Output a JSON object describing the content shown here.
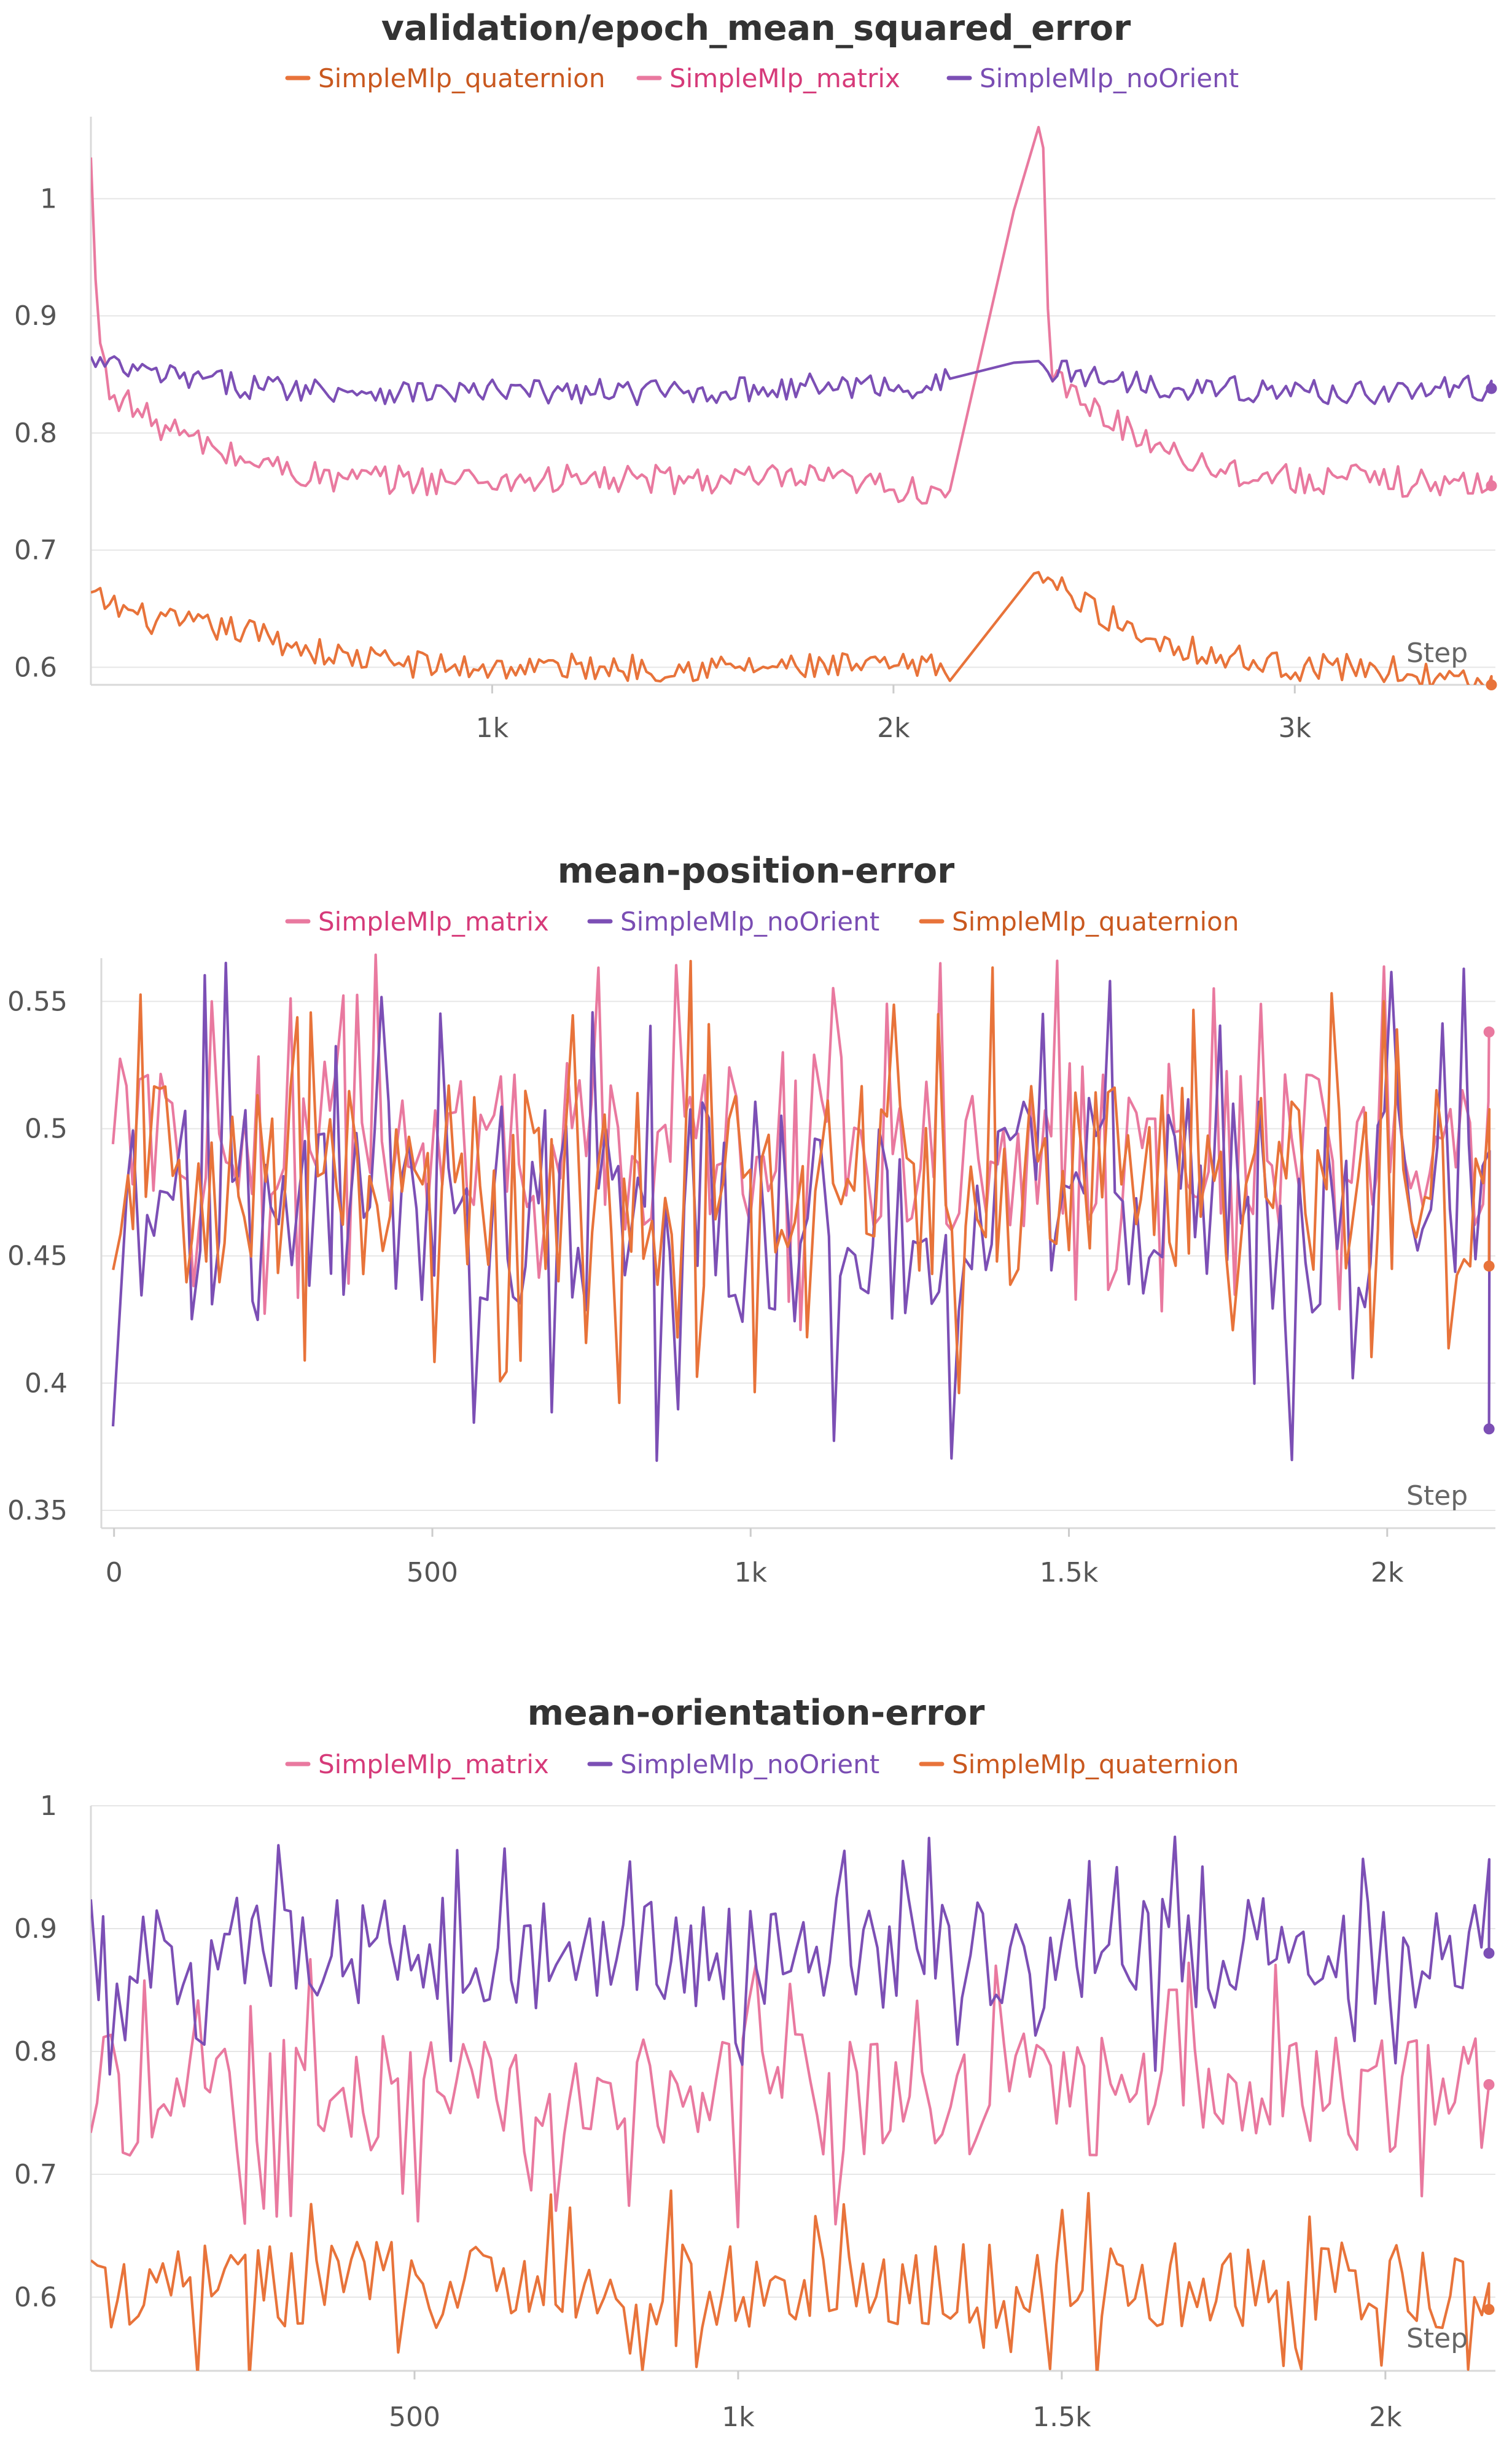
{
  "charts": [
    {
      "type": "line",
      "title": "validation/epoch_mean_squared_error",
      "legend": [
        "SimpleMlp_quaternion",
        "SimpleMlp_matrix",
        "SimpleMlp_noOrient"
      ],
      "xticks": [
        {
          "v": 1000,
          "label": "1k"
        },
        {
          "v": 2000,
          "label": "2k"
        },
        {
          "v": 3000,
          "label": "3k"
        }
      ],
      "yticks": [
        {
          "v": 0.6,
          "label": "0.6"
        },
        {
          "v": 0.7,
          "label": "0.7"
        },
        {
          "v": 0.8,
          "label": "0.8"
        },
        {
          "v": 0.9,
          "label": "0.9"
        },
        {
          "v": 1.0,
          "label": "1"
        }
      ],
      "xaxis_label": "Step"
    },
    {
      "type": "line",
      "title": "mean-position-error",
      "legend": [
        "SimpleMlp_matrix",
        "SimpleMlp_noOrient",
        "SimpleMlp_quaternion"
      ],
      "xticks": [
        {
          "v": 0,
          "label": "0"
        },
        {
          "v": 500,
          "label": "500"
        },
        {
          "v": 1000,
          "label": "1k"
        },
        {
          "v": 1500,
          "label": "1.5k"
        },
        {
          "v": 2000,
          "label": "2k"
        }
      ],
      "yticks": [
        {
          "v": 0.35,
          "label": "0.35"
        },
        {
          "v": 0.4,
          "label": "0.4"
        },
        {
          "v": 0.45,
          "label": "0.45"
        },
        {
          "v": 0.5,
          "label": "0.5"
        },
        {
          "v": 0.55,
          "label": "0.55"
        }
      ],
      "xaxis_label": "Step"
    },
    {
      "type": "line",
      "title": "mean-orientation-error",
      "legend": [
        "SimpleMlp_matrix",
        "SimpleMlp_noOrient",
        "SimpleMlp_quaternion"
      ],
      "xticks": [
        {
          "v": 500,
          "label": "500"
        },
        {
          "v": 1000,
          "label": "1k"
        },
        {
          "v": 1500,
          "label": "1.5k"
        },
        {
          "v": 2000,
          "label": "2k"
        }
      ],
      "yticks": [
        {
          "v": 0.6,
          "label": "0.6"
        },
        {
          "v": 0.7,
          "label": "0.7"
        },
        {
          "v": 0.8,
          "label": "0.8"
        },
        {
          "v": 0.9,
          "label": "0.9"
        },
        {
          "v": 1.0,
          "label": "1"
        }
      ],
      "xaxis_label": "Step"
    }
  ],
  "colors": {
    "SimpleMlp_quaternion": "#e8733a",
    "SimpleMlp_matrix": "#e9799f",
    "SimpleMlp_noOrient": "#7c4fb5"
  },
  "legend_text_colors": {
    "SimpleMlp_quaternion": "#c9581f",
    "SimpleMlp_matrix": "#d63a79",
    "SimpleMlp_noOrient": "#7a4db3"
  },
  "chart_data": [
    {
      "type": "line",
      "title": "validation/epoch_mean_squared_error",
      "xlabel": "Step",
      "ylabel": "",
      "xlim": [
        0,
        3500
      ],
      "ylim": [
        0.585,
        1.07
      ],
      "series": [
        {
          "name": "SimpleMlp_quaternion",
          "x": [
            0,
            150,
            400,
            600,
            900,
            1200,
            1500,
            1800,
            2100,
            2150,
            2350,
            2450,
            2600,
            2800,
            3000,
            3200,
            3450
          ],
          "y": [
            0.66,
            0.64,
            0.63,
            0.61,
            0.6,
            0.6,
            0.6,
            0.6,
            0.6,
            0.6,
            0.68,
            0.66,
            0.63,
            0.61,
            0.6,
            0.6,
            0.585
          ],
          "noise": 0.012,
          "end": 0.585
        },
        {
          "name": "SimpleMlp_matrix",
          "x": [
            0,
            15,
            40,
            150,
            350,
            600,
            900,
            1200,
            1500,
            1800,
            2100,
            2150,
            2300,
            2370,
            2390,
            2450,
            2600,
            2800,
            3000,
            3200,
            3450
          ],
          "y": [
            1.03,
            0.9,
            0.84,
            0.81,
            0.78,
            0.76,
            0.76,
            0.76,
            0.76,
            0.76,
            0.75,
            0.76,
            0.99,
            1.065,
            0.85,
            0.83,
            0.8,
            0.77,
            0.76,
            0.76,
            0.755
          ],
          "noise": 0.013,
          "end": 0.755
        },
        {
          "name": "SimpleMlp_noOrient",
          "x": [
            0,
            150,
            400,
            800,
            1200,
            1500,
            1800,
            2100,
            2150,
            2300,
            2450,
            2700,
            3000,
            3200,
            3450
          ],
          "y": [
            0.86,
            0.85,
            0.84,
            0.835,
            0.835,
            0.835,
            0.84,
            0.84,
            0.85,
            0.86,
            0.85,
            0.84,
            0.835,
            0.835,
            0.838
          ],
          "noise": 0.011,
          "end": 0.838
        }
      ]
    },
    {
      "type": "line",
      "title": "mean-position-error",
      "xlabel": "Step",
      "ylabel": "",
      "xlim": [
        -20,
        2170
      ],
      "ylim": [
        0.343,
        0.567
      ],
      "series": [
        {
          "name": "SimpleMlp_matrix",
          "base": 0.495,
          "noise": 0.035,
          "end": 0.538
        },
        {
          "name": "SimpleMlp_noOrient",
          "base": 0.468,
          "noise": 0.045,
          "end": 0.382
        },
        {
          "name": "SimpleMlp_quaternion",
          "base": 0.478,
          "noise": 0.04,
          "end": 0.446
        }
      ]
    },
    {
      "type": "line",
      "title": "mean-orientation-error",
      "xlabel": "Step",
      "ylabel": "",
      "xlim": [
        0,
        2170
      ],
      "ylim": [
        0.54,
        1.0
      ],
      "series": [
        {
          "name": "SimpleMlp_matrix",
          "base": 0.765,
          "noise": 0.05,
          "end": 0.773
        },
        {
          "name": "SimpleMlp_noOrient",
          "base": 0.88,
          "noise": 0.045,
          "end": 0.88
        },
        {
          "name": "SimpleMlp_quaternion",
          "base": 0.61,
          "noise": 0.035,
          "end": 0.59
        }
      ]
    }
  ]
}
